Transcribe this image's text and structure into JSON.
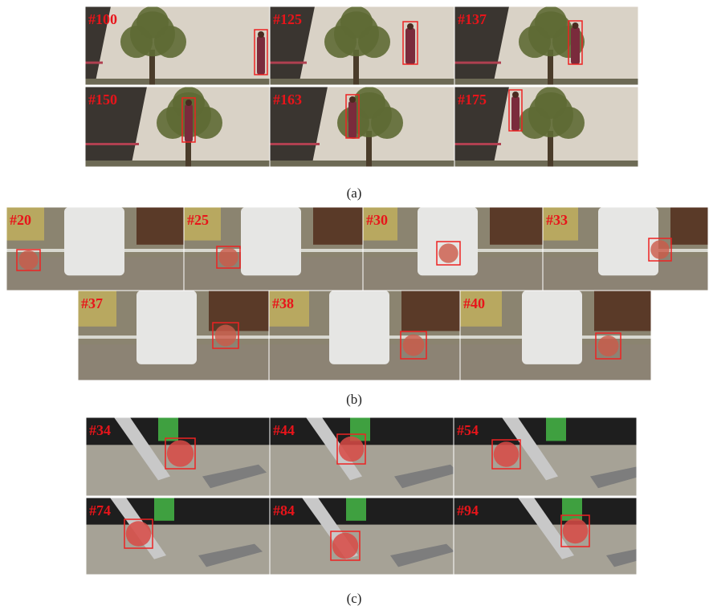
{
  "panels": [
    {
      "frames": [
        "#100",
        "#125",
        "#137",
        "#150",
        "#163",
        "#175"
      ],
      "caption": "(a)"
    },
    {
      "frames": [
        "#20",
        "#25",
        "#30",
        "#33",
        "#37",
        "#38",
        "#40"
      ],
      "caption": "(b)"
    },
    {
      "frames": [
        "#34",
        "#44",
        "#54",
        "#74",
        "#84",
        "#94"
      ],
      "caption": "(c)"
    }
  ]
}
